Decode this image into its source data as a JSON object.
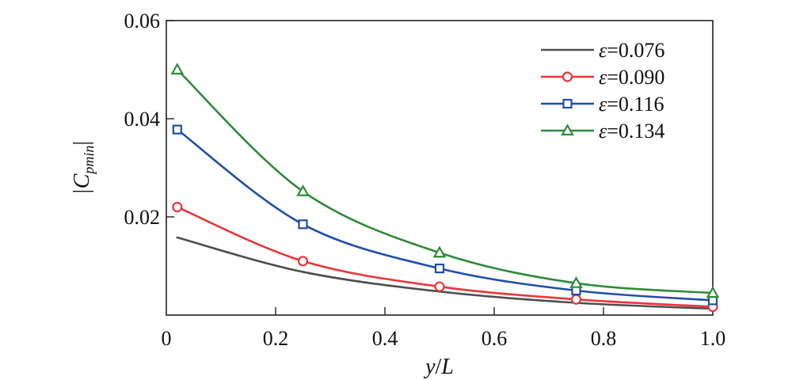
{
  "chart_data": {
    "type": "line",
    "xlabel_var": "y",
    "xlabel_sep": "/",
    "xlabel_var2": "L",
    "ylabel_main": "|C",
    "ylabel_sub": "pmin",
    "ylabel_close": "|",
    "xlim": [
      0,
      1.0
    ],
    "ylim": [
      0,
      0.06
    ],
    "xticks": [
      0,
      0.2,
      0.4,
      0.6,
      0.8,
      1.0
    ],
    "xtick_labels": [
      "0",
      "0.2",
      "0.4",
      "0.6",
      "0.8",
      "1.0"
    ],
    "yticks": [
      0.02,
      0.04,
      0.06
    ],
    "ytick_labels": [
      "0.02",
      "0.04",
      "0.06"
    ],
    "grid": false,
    "legend_position": "top-right",
    "x": [
      0.02,
      0.25,
      0.5,
      0.75,
      1.0
    ],
    "series": [
      {
        "name": "ε=0.076",
        "symbol": "ε",
        "value_text": "=0.076",
        "color": "#4d4d4d",
        "marker": "none",
        "values": [
          0.0158,
          0.0088,
          0.0048,
          0.0025,
          0.0013
        ]
      },
      {
        "name": "ε=0.090",
        "symbol": "ε",
        "value_text": "=0.090",
        "color": "#e8363a",
        "marker": "circle",
        "values": [
          0.022,
          0.011,
          0.0058,
          0.0032,
          0.0017
        ]
      },
      {
        "name": "ε=0.116",
        "symbol": "ε",
        "value_text": "=0.116",
        "color": "#1f4fa8",
        "marker": "square",
        "values": [
          0.0378,
          0.0185,
          0.0095,
          0.005,
          0.003
        ]
      },
      {
        "name": "ε=0.134",
        "symbol": "ε",
        "value_text": "=0.134",
        "color": "#2e8b3a",
        "marker": "triangle",
        "values": [
          0.05,
          0.0252,
          0.0127,
          0.0065,
          0.0045
        ]
      }
    ]
  }
}
